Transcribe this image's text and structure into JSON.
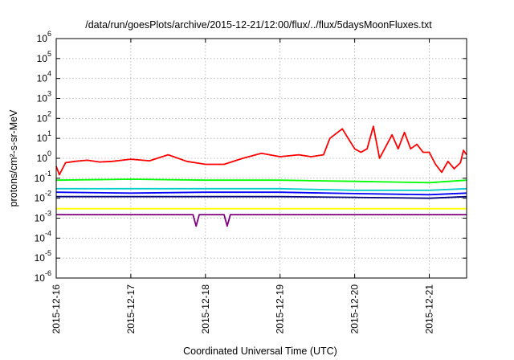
{
  "chart_data": {
    "type": "line",
    "title": "/data/run/goesPlots/archive/2015-12-21/12:00/flux/../flux/5daysMoonFluxes.txt",
    "xlabel": "Coordinated Universal Time (UTC)",
    "ylabel": "protons/cm²-s-sr-MeV",
    "y_scale": "log",
    "ylim": [
      1e-06,
      1000000.0
    ],
    "xlim": [
      "2015-12-16",
      "2015-12-21T12:00"
    ],
    "grid": true,
    "y_ticks": [
      {
        "base": "10",
        "exp": "-6",
        "value": 1e-06
      },
      {
        "base": "10",
        "exp": "-5",
        "value": 1e-05
      },
      {
        "base": "10",
        "exp": "-4",
        "value": 0.0001
      },
      {
        "base": "10",
        "exp": "-3",
        "value": 0.001
      },
      {
        "base": "10",
        "exp": "-2",
        "value": 0.01
      },
      {
        "base": "10",
        "exp": "-1",
        "value": 0.1
      },
      {
        "base": "10",
        "exp": "0",
        "value": 1
      },
      {
        "base": "10",
        "exp": "1",
        "value": 10
      },
      {
        "base": "10",
        "exp": "2",
        "value": 100
      },
      {
        "base": "10",
        "exp": "3",
        "value": 1000
      },
      {
        "base": "10",
        "exp": "4",
        "value": 10000
      },
      {
        "base": "10",
        "exp": "5",
        "value": 100000
      },
      {
        "base": "10",
        "exp": "6",
        "value": 1000000
      }
    ],
    "x_ticks": [
      "2015-12-16",
      "2015-12-17",
      "2015-12-18",
      "2015-12-19",
      "2015-12-20",
      "2015-12-21"
    ],
    "series": [
      {
        "color": "#ff0000",
        "x": [
          "2015-12-16T00:00",
          "2015-12-16T01:00",
          "2015-12-16T03:00",
          "2015-12-16T06:00",
          "2015-12-16T10:00",
          "2015-12-16T14:00",
          "2015-12-16T18:00",
          "2015-12-17T00:00",
          "2015-12-17T06:00",
          "2015-12-17T12:00",
          "2015-12-17T18:00",
          "2015-12-18T00:00",
          "2015-12-18T06:00",
          "2015-12-18T12:00",
          "2015-12-18T18:00",
          "2015-12-19T00:00",
          "2015-12-19T06:00",
          "2015-12-19T10:00",
          "2015-12-19T14:00",
          "2015-12-19T16:00",
          "2015-12-19T20:00",
          "2015-12-20T00:00",
          "2015-12-20T02:00",
          "2015-12-20T04:00",
          "2015-12-20T06:00",
          "2015-12-20T08:00",
          "2015-12-20T12:00",
          "2015-12-20T14:00",
          "2015-12-20T16:00",
          "2015-12-20T18:00",
          "2015-12-20T20:00",
          "2015-12-20T22:00",
          "2015-12-21T00:00",
          "2015-12-21T02:00",
          "2015-12-21T04:00",
          "2015-12-21T06:00",
          "2015-12-21T08:00",
          "2015-12-21T10:00",
          "2015-12-21T11:00",
          "2015-12-21T12:00"
        ],
        "y": [
          0.4,
          0.15,
          0.6,
          0.7,
          0.8,
          0.65,
          0.7,
          0.9,
          0.75,
          1.5,
          0.7,
          0.5,
          0.5,
          1.0,
          1.8,
          1.2,
          1.5,
          1.2,
          1.5,
          10,
          30,
          3,
          2,
          3,
          40,
          1,
          15,
          3,
          20,
          3,
          5,
          2,
          2,
          0.5,
          0.2,
          0.7,
          0.3,
          0.6,
          2.5,
          1.5
        ]
      },
      {
        "color": "#00ff00",
        "x": [
          "2015-12-16T00:00",
          "2015-12-17T00:00",
          "2015-12-18T00:00",
          "2015-12-19T00:00",
          "2015-12-20T00:00",
          "2015-12-21T00:00",
          "2015-12-21T12:00"
        ],
        "y": [
          0.08,
          0.09,
          0.08,
          0.08,
          0.07,
          0.06,
          0.08
        ]
      },
      {
        "color": "#00cccc",
        "x": [
          "2015-12-16T00:00",
          "2015-12-17T00:00",
          "2015-12-18T00:00",
          "2015-12-19T00:00",
          "2015-12-20T00:00",
          "2015-12-21T00:00",
          "2015-12-21T12:00"
        ],
        "y": [
          0.03,
          0.03,
          0.03,
          0.03,
          0.025,
          0.025,
          0.03
        ]
      },
      {
        "color": "#0000ff",
        "x": [
          "2015-12-16T00:00",
          "2015-12-17T00:00",
          "2015-12-18T00:00",
          "2015-12-19T00:00",
          "2015-12-20T00:00",
          "2015-12-21T00:00",
          "2015-12-21T12:00"
        ],
        "y": [
          0.02,
          0.018,
          0.02,
          0.02,
          0.017,
          0.015,
          0.018
        ]
      },
      {
        "color": "#000080",
        "x": [
          "2015-12-16T00:00",
          "2015-12-17T00:00",
          "2015-12-18T00:00",
          "2015-12-19T00:00",
          "2015-12-20T00:00",
          "2015-12-21T00:00",
          "2015-12-21T12:00"
        ],
        "y": [
          0.012,
          0.012,
          0.012,
          0.012,
          0.011,
          0.01,
          0.012
        ]
      },
      {
        "color": "#ffff00",
        "x": [
          "2015-12-16T00:00",
          "2015-12-17T00:00",
          "2015-12-18T00:00",
          "2015-12-19T00:00",
          "2015-12-20T00:00",
          "2015-12-21T00:00",
          "2015-12-21T12:00"
        ],
        "y": [
          0.003,
          0.003,
          0.003,
          0.003,
          0.003,
          0.003,
          0.003
        ]
      },
      {
        "color": "#800080",
        "x": [
          "2015-12-16T00:00",
          "2015-12-16T12:00",
          "2015-12-17T00:00",
          "2015-12-17T12:00",
          "2015-12-17T20:00",
          "2015-12-17T21:00",
          "2015-12-17T22:00",
          "2015-12-18T00:00",
          "2015-12-18T06:00",
          "2015-12-18T07:00",
          "2015-12-18T08:00",
          "2015-12-18T12:00",
          "2015-12-19T00:00",
          "2015-12-20T00:00",
          "2015-12-21T00:00",
          "2015-12-21T12:00"
        ],
        "y": [
          0.0015,
          0.0015,
          0.0015,
          0.0015,
          0.0015,
          0.0004,
          0.0015,
          0.0015,
          0.0015,
          0.0004,
          0.0015,
          0.0015,
          0.0015,
          0.0015,
          0.0015,
          0.0015
        ]
      }
    ]
  }
}
